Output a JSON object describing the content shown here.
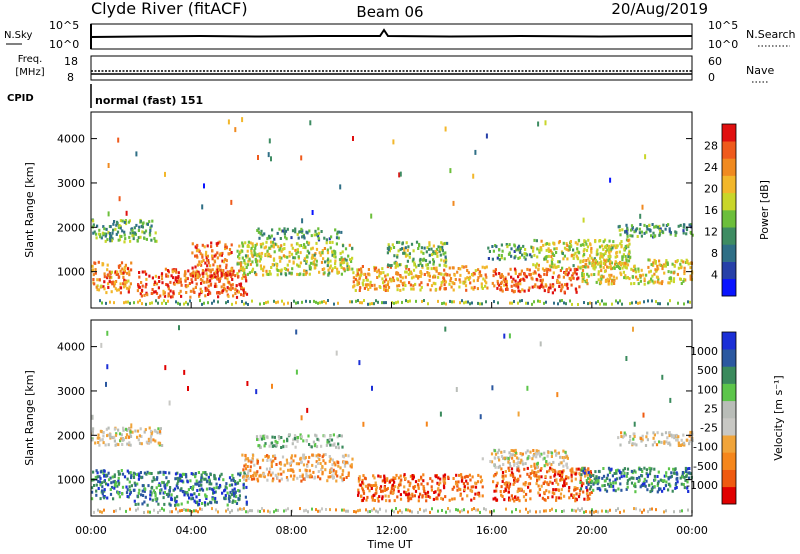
{
  "header": {
    "title_left": "Clyde River (fitACF)",
    "title_center": "Beam 06",
    "title_right": "20/Aug/2019"
  },
  "params": {
    "nsky_label": "N.Sky",
    "nsky_ticks": [
      "10^5",
      "10^0"
    ],
    "nsearch_label": "N.Search",
    "nsearch_ticks": [
      "10^5",
      "10^0"
    ],
    "freq_label_1": "Freq.",
    "freq_label_2": "[MHz]",
    "freq_ticks": [
      "18",
      "8"
    ],
    "nave_label": "Nave",
    "nave_ticks": [
      "60",
      "0"
    ],
    "cpid_label": "CPID",
    "cpid_value": "normal (fast) 151"
  },
  "colors": {
    "power": [
      "#0a14ff",
      "#2740a8",
      "#2f6f86",
      "#3e8c62",
      "#6cbf3b",
      "#c9d62a",
      "#f2b72b",
      "#f08a20",
      "#ef5a1c",
      "#e01010"
    ],
    "velocity": [
      "#e00000",
      "#ef5a10",
      "#f5861c",
      "#f0a43a",
      "#c8c8c4",
      "#b9bdb8",
      "#5cc54a",
      "#3a8a5c",
      "#2b58a0",
      "#1b2fd6"
    ]
  },
  "chart_data": [
    {
      "type": "heatmap",
      "variable": "power",
      "ylabel": "Slant Range [km]",
      "ylim": [
        180,
        4600
      ],
      "yticks": [
        "4000",
        "3000",
        "2000",
        "1000"
      ],
      "xlim": [
        "00:00",
        "24:00"
      ],
      "colorbar_label": "Power [dB]",
      "colorbar_ticks": [
        "28",
        "24",
        "20",
        "16",
        "12",
        "8",
        "4"
      ],
      "bands": [
        {
          "t0": 0.0,
          "t1": 1.6,
          "r0": 550,
          "r1": 1250,
          "level": 0.75
        },
        {
          "t0": 0.0,
          "t1": 2.6,
          "r0": 1700,
          "r1": 2200,
          "level": 0.4
        },
        {
          "t0": 1.8,
          "t1": 6.2,
          "r0": 450,
          "r1": 1100,
          "level": 0.85
        },
        {
          "t0": 4.0,
          "t1": 5.6,
          "r0": 900,
          "r1": 1700,
          "level": 0.8
        },
        {
          "t0": 5.8,
          "t1": 10.4,
          "r0": 950,
          "r1": 1700,
          "level": 0.55
        },
        {
          "t0": 6.5,
          "t1": 10.0,
          "r0": 1750,
          "r1": 2000,
          "level": 0.35
        },
        {
          "t0": 10.4,
          "t1": 15.8,
          "r0": 600,
          "r1": 1150,
          "level": 0.7
        },
        {
          "t0": 11.8,
          "t1": 14.2,
          "r0": 1150,
          "r1": 1700,
          "level": 0.45
        },
        {
          "t0": 15.8,
          "t1": 17.6,
          "r0": 1300,
          "r1": 1650,
          "level": 0.35
        },
        {
          "t0": 16.0,
          "t1": 19.5,
          "r0": 550,
          "r1": 1100,
          "level": 0.85
        },
        {
          "t0": 17.6,
          "t1": 21.5,
          "r0": 1100,
          "r1": 1750,
          "level": 0.55
        },
        {
          "t0": 19.5,
          "t1": 24.0,
          "r0": 750,
          "r1": 1300,
          "level": 0.6
        },
        {
          "t0": 21.0,
          "t1": 24.0,
          "r0": 1800,
          "r1": 2100,
          "level": 0.35
        }
      ]
    },
    {
      "type": "heatmap",
      "variable": "velocity",
      "ylabel": "Slant Range [km]",
      "ylim": [
        180,
        4600
      ],
      "yticks": [
        "4000",
        "3000",
        "2000",
        "1000"
      ],
      "xlim": [
        "00:00",
        "24:00"
      ],
      "xticks": [
        "00:00",
        "04:00",
        "08:00",
        "12:00",
        "16:00",
        "20:00",
        "00:00"
      ],
      "xlabel": "Time UT",
      "colorbar_label": "Velocity [m s⁻¹]",
      "colorbar_ticks": [
        "1000",
        "500",
        "100",
        "25",
        "-25",
        "-100",
        "-500",
        "-1000"
      ],
      "bands": [
        {
          "t0": 0.0,
          "t1": 1.6,
          "r0": 600,
          "r1": 1250,
          "level": 0.78
        },
        {
          "t0": 0.0,
          "t1": 2.8,
          "r0": 1800,
          "r1": 2200,
          "level": 0.45
        },
        {
          "t0": 1.6,
          "t1": 6.2,
          "r0": 450,
          "r1": 1200,
          "level": 0.8
        },
        {
          "t0": 6.0,
          "t1": 10.4,
          "r0": 1000,
          "r1": 1600,
          "level": 0.3
        },
        {
          "t0": 6.5,
          "t1": 10.0,
          "r0": 1750,
          "r1": 2050,
          "level": 0.6
        },
        {
          "t0": 10.6,
          "t1": 15.6,
          "r0": 550,
          "r1": 1150,
          "level": 0.18
        },
        {
          "t0": 15.6,
          "t1": 19.0,
          "r0": 1300,
          "r1": 1700,
          "level": 0.45
        },
        {
          "t0": 16.0,
          "t1": 20.0,
          "r0": 550,
          "r1": 1300,
          "level": 0.2
        },
        {
          "t0": 19.5,
          "t1": 24.0,
          "r0": 750,
          "r1": 1300,
          "level": 0.78
        },
        {
          "t0": 21.0,
          "t1": 24.0,
          "r0": 1800,
          "r1": 2100,
          "level": 0.45
        }
      ]
    }
  ]
}
